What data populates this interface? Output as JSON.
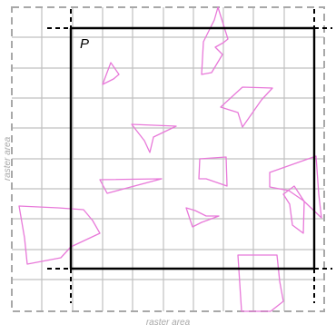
{
  "diagram": {
    "corner_label": "P",
    "raster_area_label_bottom": "raster area",
    "raster_area_label_left": "raster area",
    "colors": {
      "grid": "#c0c0c0",
      "raster_border": "#a8a8a8",
      "frame": "#000000",
      "polygons": "#e879d9"
    },
    "polygon_count": 11
  }
}
